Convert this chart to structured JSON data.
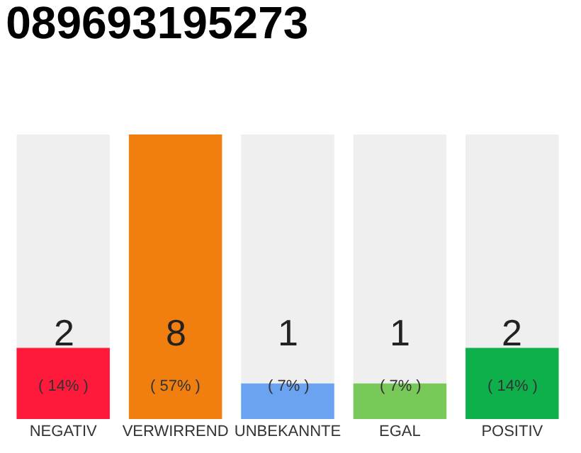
{
  "chart_data": {
    "type": "bar",
    "title": "089693195273",
    "categories": [
      "NEGATIV",
      "VERWIRREND",
      "UNBEKANNTE",
      "EGAL",
      "POSITIV"
    ],
    "values": [
      2,
      8,
      1,
      1,
      2
    ],
    "colors": [
      "#ff1a3c",
      "#f07f0f",
      "#6aa4f0",
      "#78c85a",
      "#0db04b"
    ],
    "ylim": [
      0,
      8
    ],
    "data_labels": true,
    "grid": false,
    "annotations": [
      "( 14% )",
      "( 57% )",
      "( 7% )",
      "( 7% )",
      "( 14% )"
    ]
  }
}
